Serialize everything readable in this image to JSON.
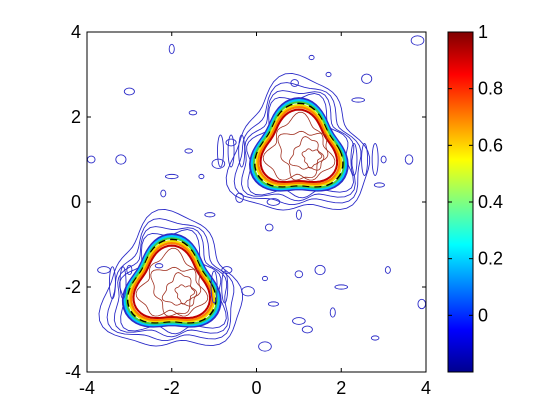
{
  "chart_data": {
    "type": "contour",
    "title": "",
    "xlabel": "",
    "ylabel": "",
    "xlim": [
      -4,
      4
    ],
    "ylim": [
      -4,
      4
    ],
    "x_ticks": [
      "-4",
      "-2",
      "0",
      "2",
      "4"
    ],
    "y_ticks": [
      "4",
      "2",
      "0",
      "-2",
      "-4"
    ],
    "colorbar": {
      "colormap": "jet",
      "range": [
        -0.2,
        1
      ],
      "tick_labels": [
        "1",
        "0.8",
        "0.6",
        "0.4",
        "0.2",
        "0"
      ],
      "tick_values": [
        1,
        0.8,
        0.6,
        0.4,
        0.2,
        0
      ]
    },
    "regions": [
      {
        "shape": "rounded-triangle",
        "center": [
          1.0,
          1.2
        ]
      },
      {
        "shape": "rounded-triangle",
        "center": [
          -2.0,
          -2.0
        ]
      }
    ],
    "level_colors": {
      "low": "#2c2cc8",
      "mid_cyan": "#00c8ff",
      "mid_green": "#40d040",
      "mid_yellow": "#f0e000",
      "high_orange": "#ff8000",
      "high_red": "#c00000",
      "top": "#a03020",
      "boundary": "#000000"
    }
  }
}
